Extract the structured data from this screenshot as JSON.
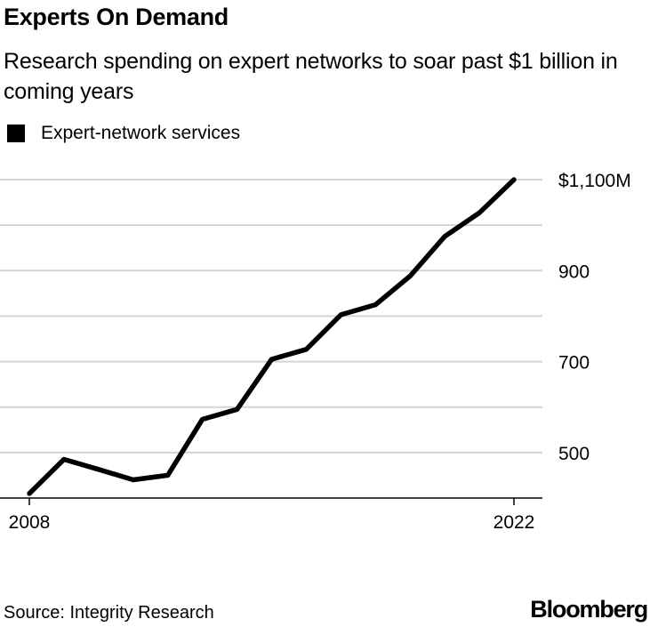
{
  "title": "Experts On Demand",
  "subtitle": "Research spending on expert networks to soar past $1 billion in coming years",
  "source": "Source: Integrity Research",
  "brand": "Bloomberg",
  "chart_data": {
    "type": "line",
    "x": [
      2008,
      2009,
      2010,
      2011,
      2012,
      2013,
      2014,
      2015,
      2016,
      2017,
      2018,
      2019,
      2020,
      2021,
      2022
    ],
    "series": [
      {
        "name": "Expert-network services",
        "color": "#000000",
        "values": [
          410,
          485,
          463,
          440,
          450,
          573,
          595,
          705,
          727,
          803,
          825,
          888,
          975,
          1027,
          1100
        ]
      }
    ],
    "x_ticks": [
      "2008",
      "2022"
    ],
    "y_ticks": [
      {
        "value": 1100,
        "label": "$1,100M"
      },
      {
        "value": 900,
        "label": "900"
      },
      {
        "value": 700,
        "label": "700"
      },
      {
        "value": 500,
        "label": "500"
      }
    ],
    "gridlines": [
      500,
      600,
      700,
      800,
      900,
      1000,
      1100
    ],
    "ylim": [
      400,
      1100
    ],
    "xlim": [
      2008,
      2022
    ],
    "grid": true,
    "legend_position": "top-left"
  }
}
